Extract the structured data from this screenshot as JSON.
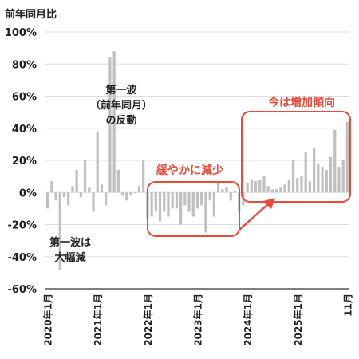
{
  "chart_data": {
    "type": "bar",
    "ylabel": "前年同月比",
    "ylim": [
      -60,
      100
    ],
    "yticks": [
      "100%",
      "80%",
      "60%",
      "40%",
      "20%",
      "0%",
      "-20%",
      "-40%",
      "-60%"
    ],
    "xticks": [
      "2020年1月",
      "2021年1月",
      "2022年1月",
      "2023年1月",
      "2024年1月",
      "2025年1月",
      "11月"
    ],
    "grid": true,
    "colors": {
      "bar": "#c0c0c0",
      "grid": "#dddddd",
      "highlight": "#e84a3c",
      "axis": "#333333"
    },
    "values": [
      -10,
      7,
      -5,
      -48,
      -3,
      -8,
      4,
      14,
      -3,
      20,
      3,
      -12,
      38,
      5,
      -8,
      84,
      88,
      14,
      -2,
      -5,
      -2,
      0,
      4,
      20,
      -16,
      -15,
      -12,
      -18,
      -12,
      -15,
      -10,
      -10,
      -20,
      -8,
      -12,
      -15,
      -10,
      -8,
      -25,
      -5,
      -15,
      6,
      2,
      3,
      -5,
      1,
      -12,
      -8,
      6,
      8,
      7,
      8,
      10,
      4,
      2,
      2,
      3,
      5,
      8,
      20,
      9,
      10,
      25,
      7,
      28,
      18,
      16,
      14,
      22,
      39,
      16,
      20,
      44
    ],
    "annotations": {
      "first_wave_drop": [
        "第一波は",
        "大幅減"
      ],
      "first_wave_rebound": [
        "第一波",
        "（前年同月）",
        "の反動"
      ],
      "gradual_decline": "緩やかに減少",
      "increasing": "今は増加傾向"
    }
  }
}
